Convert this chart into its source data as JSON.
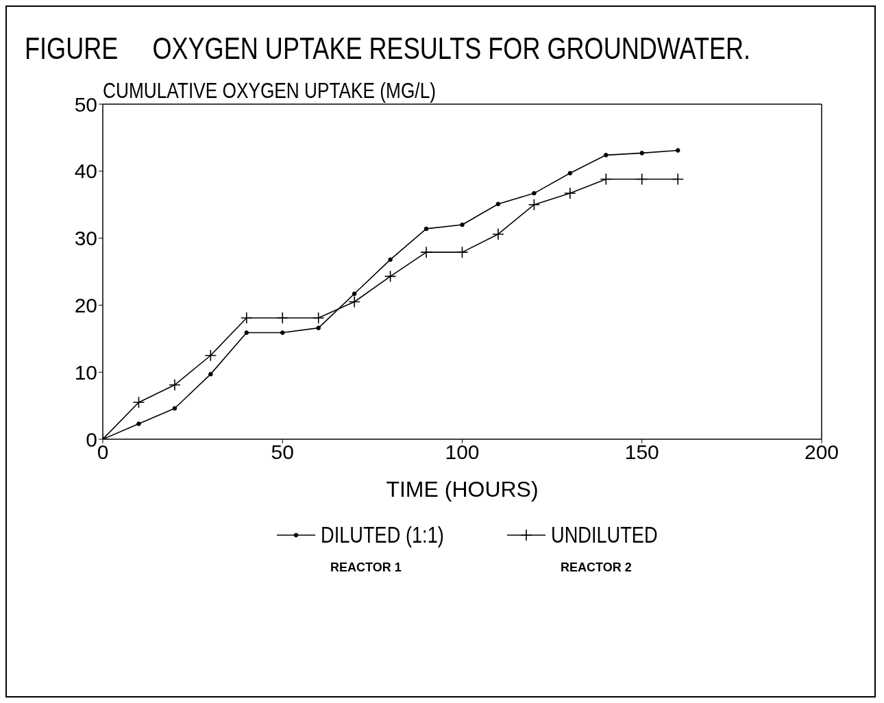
{
  "chart_data": {
    "type": "line",
    "title": "FIGURE     OXYGEN UPTAKE RESULTS FOR GROUNDWATER.",
    "xlabel": "TIME (HOURS)",
    "ylabel": "CUMULATIVE OXYGEN UPTAKE (MG/L)",
    "x": [
      0,
      10,
      20,
      30,
      40,
      50,
      60,
      70,
      80,
      90,
      100,
      110,
      120,
      130,
      140,
      150,
      160
    ],
    "series": [
      {
        "name": "DILUTED (1:1)",
        "color": "#000000",
        "marker": "circle",
        "values": [
          0,
          2.3,
          4.6,
          9.7,
          15.9,
          15.9,
          16.6,
          21.7,
          26.8,
          31.4,
          32.0,
          35.1,
          36.7,
          39.7,
          42.4,
          42.7,
          43.1
        ]
      },
      {
        "name": "UNDILUTED",
        "color": "#000000",
        "marker": "cross",
        "values": [
          0,
          5.5,
          8.1,
          12.5,
          18.1,
          18.1,
          18.1,
          20.5,
          24.3,
          27.9,
          27.9,
          30.6,
          35.0,
          36.7,
          38.8,
          38.8,
          38.8
        ]
      }
    ],
    "annotations": [
      "REACTOR 1",
      "REACTOR 2"
    ],
    "xlim": [
      0,
      200
    ],
    "xticks": [
      0,
      50,
      100,
      150,
      200
    ],
    "ylim": [
      0,
      50
    ],
    "yticks": [
      0,
      10,
      20,
      30,
      40,
      50
    ],
    "legend": "bottom",
    "line_style": "solid"
  }
}
